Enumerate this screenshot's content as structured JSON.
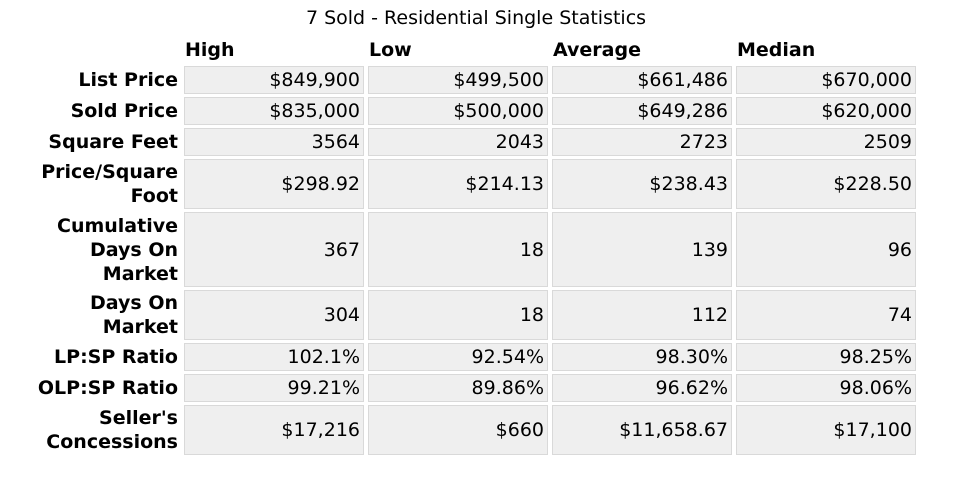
{
  "title": "7 Sold - Residential Single Statistics",
  "columns": [
    "High",
    "Low",
    "Average",
    "Median"
  ],
  "rows": [
    {
      "label": "List Price",
      "values": [
        "$849,900",
        "$499,500",
        "$661,486",
        "$670,000"
      ]
    },
    {
      "label": "Sold Price",
      "values": [
        "$835,000",
        "$500,000",
        "$649,286",
        "$620,000"
      ]
    },
    {
      "label": "Square Feet",
      "values": [
        "3564",
        "2043",
        "2723",
        "2509"
      ]
    },
    {
      "label": "Price/Square Foot",
      "values": [
        "$298.92",
        "$214.13",
        "$238.43",
        "$228.50"
      ]
    },
    {
      "label": "Cumulative Days On Market",
      "values": [
        "367",
        "18",
        "139",
        "96"
      ]
    },
    {
      "label": "Days On Market",
      "values": [
        "304",
        "18",
        "112",
        "74"
      ]
    },
    {
      "label": "LP:SP Ratio",
      "values": [
        "102.1%",
        "92.54%",
        "98.30%",
        "98.25%"
      ]
    },
    {
      "label": "OLP:SP Ratio",
      "values": [
        "99.21%",
        "89.86%",
        "96.62%",
        "98.06%"
      ]
    },
    {
      "label": "Seller's Concessions",
      "values": [
        "$17,216",
        "$660",
        "$11,658.67",
        "$17,100"
      ]
    }
  ]
}
